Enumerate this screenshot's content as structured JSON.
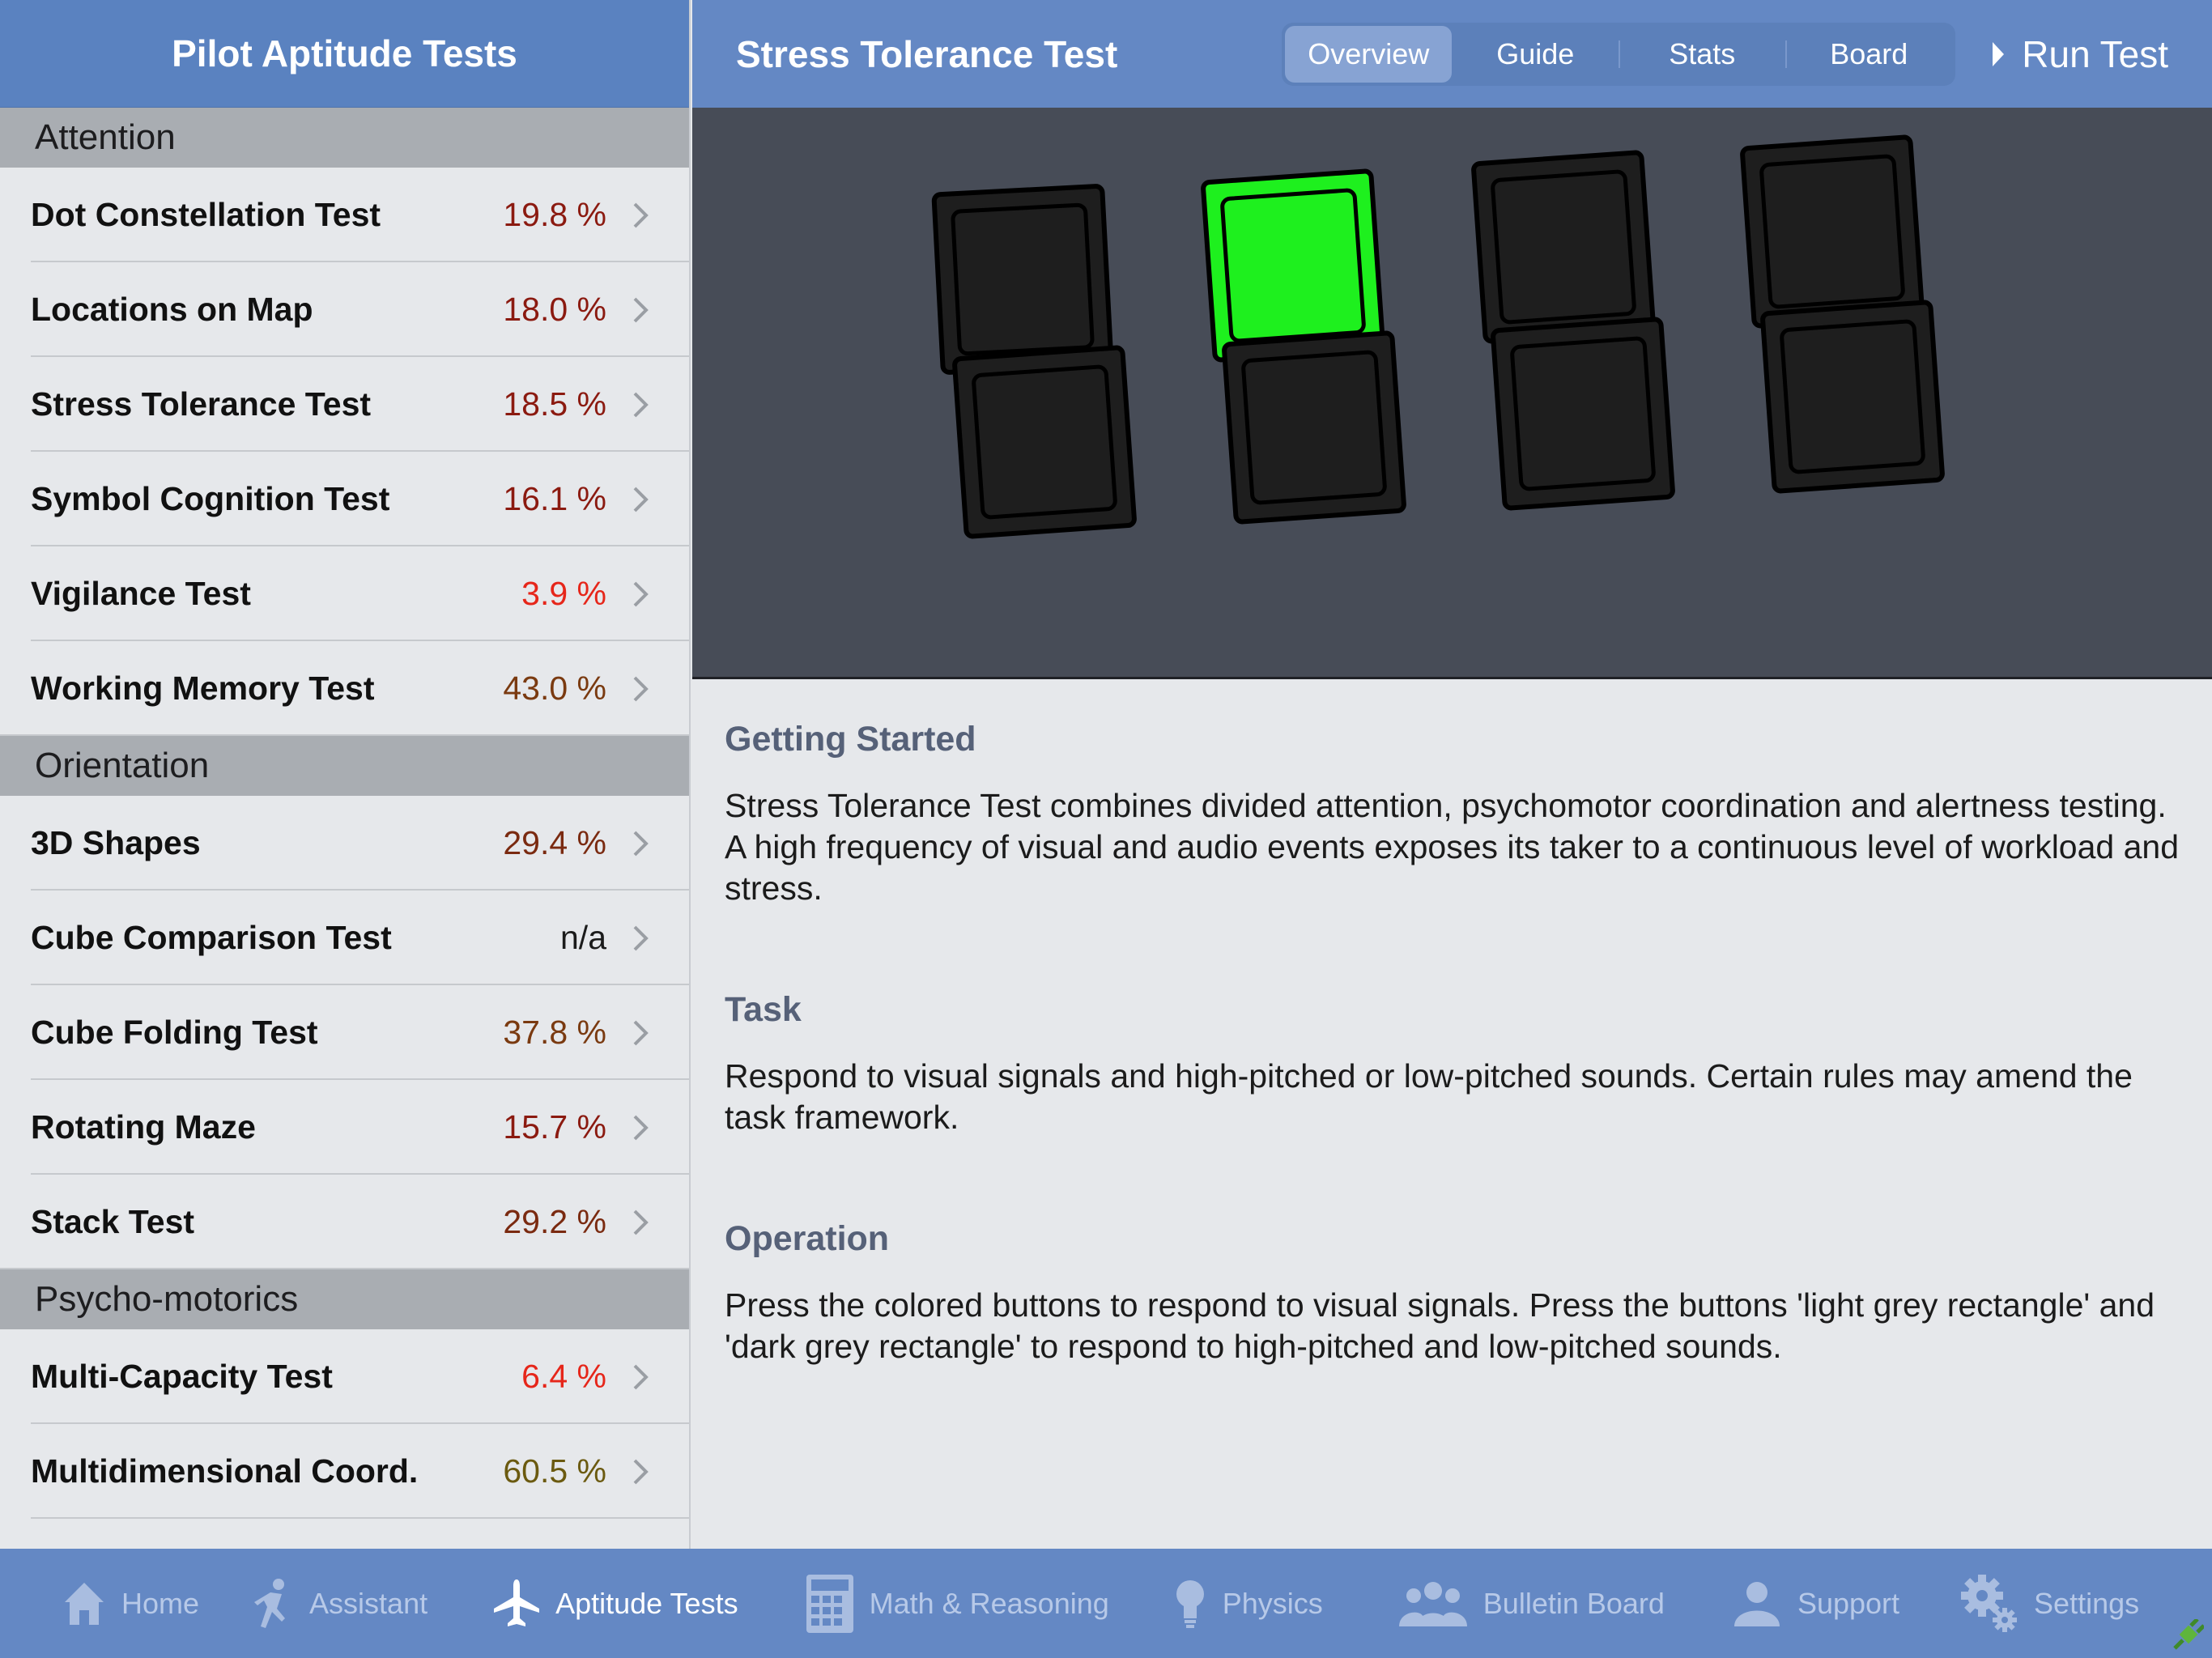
{
  "sidebar": {
    "title": "Pilot Aptitude Tests",
    "sections": [
      {
        "header": "Attention",
        "items": [
          {
            "label": "Dot Constellation Test",
            "value": "19.8 %",
            "color": "#8b1a10"
          },
          {
            "label": "Locations on Map",
            "value": "18.0 %",
            "color": "#8b1a10"
          },
          {
            "label": "Stress Tolerance Test",
            "value": "18.5 %",
            "color": "#8b1a10"
          },
          {
            "label": "Symbol Cognition Test",
            "value": "16.1 %",
            "color": "#8b1a10"
          },
          {
            "label": "Vigilance Test",
            "value": "3.9 %",
            "color": "#e6261a"
          },
          {
            "label": "Working Memory Test",
            "value": "43.0 %",
            "color": "#7a3a10"
          }
        ]
      },
      {
        "header": "Orientation",
        "items": [
          {
            "label": "3D Shapes",
            "value": "29.4 %",
            "color": "#7a2a10"
          },
          {
            "label": "Cube Comparison Test",
            "value": "n/a",
            "color": "#1b1b1b"
          },
          {
            "label": "Cube Folding Test",
            "value": "37.8 %",
            "color": "#7a3a10"
          },
          {
            "label": "Rotating Maze",
            "value": "15.7 %",
            "color": "#8b1a10"
          },
          {
            "label": "Stack Test",
            "value": "29.2 %",
            "color": "#7a2a10"
          }
        ]
      },
      {
        "header": "Psycho-motorics",
        "items": [
          {
            "label": "Multi-Capacity Test",
            "value": "6.4 %",
            "color": "#e6261a"
          },
          {
            "label": "Multidimensional Coord.",
            "value": "60.5 %",
            "color": "#6b5a10"
          }
        ]
      }
    ]
  },
  "detail": {
    "title": "Stress Tolerance Test",
    "segments": [
      "Overview",
      "Guide",
      "Stats",
      "Board"
    ],
    "active_segment": "Overview",
    "run_label": "Run Test",
    "preview": {
      "lit_color": "#1ef01e",
      "lit_index": 1
    },
    "sections": [
      {
        "title": "Getting Started",
        "text": "Stress Tolerance Test combines divided attention, psychomotor coordination and alertness testing. A high frequency of visual and audio events exposes its taker to a continuous level of workload and stress."
      },
      {
        "title": "Task",
        "text": "Respond to visual signals and high-pitched or low-pitched sounds. Certain rules may amend the task framework."
      },
      {
        "title": "Operation",
        "text": "Press the colored buttons to respond to visual signals. Press the buttons 'light grey rectangle' and 'dark grey rectangle' to respond to high-pitched and low-pitched sounds."
      }
    ]
  },
  "tabbar": {
    "items": [
      {
        "label": "Home",
        "icon": "home-icon"
      },
      {
        "label": "Assistant",
        "icon": "running-person-icon"
      },
      {
        "label": "Aptitude Tests",
        "icon": "airplane-icon"
      },
      {
        "label": "Math & Reasoning",
        "icon": "calculator-icon"
      },
      {
        "label": "Physics",
        "icon": "lightbulb-icon"
      },
      {
        "label": "Bulletin Board",
        "icon": "group-icon"
      },
      {
        "label": "Support",
        "icon": "person-icon"
      },
      {
        "label": "Settings",
        "icon": "gear-icon"
      }
    ],
    "active": "Aptitude Tests"
  },
  "colors": {
    "header_blue": "#5a82c0",
    "tabbar_blue": "#6488c4",
    "preview_bg": "#474c57",
    "button_dark": "#1e1e1e"
  }
}
